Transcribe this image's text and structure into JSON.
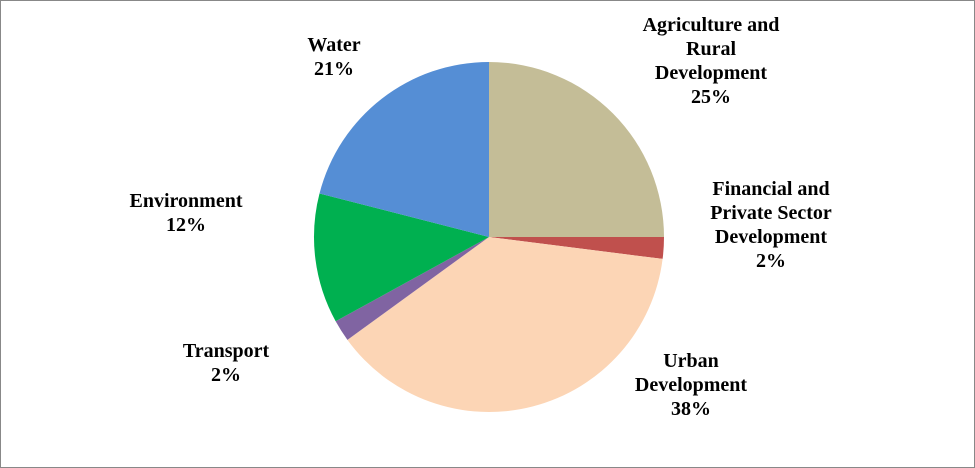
{
  "chart_data": {
    "type": "pie",
    "categories": [
      "Agriculture and Rural Development",
      "Financial and Private Sector Development",
      "Urban Development",
      "Transport",
      "Environment",
      "Water"
    ],
    "values": [
      25,
      2,
      38,
      2,
      12,
      21
    ],
    "value_labels": [
      "25%",
      "2%",
      "38%",
      "2%",
      "12%",
      "21%"
    ],
    "colors": [
      "#c4bd97",
      "#c0504d",
      "#fcd5b5",
      "#8064a2",
      "#00b050",
      "#558ed5"
    ]
  }
}
